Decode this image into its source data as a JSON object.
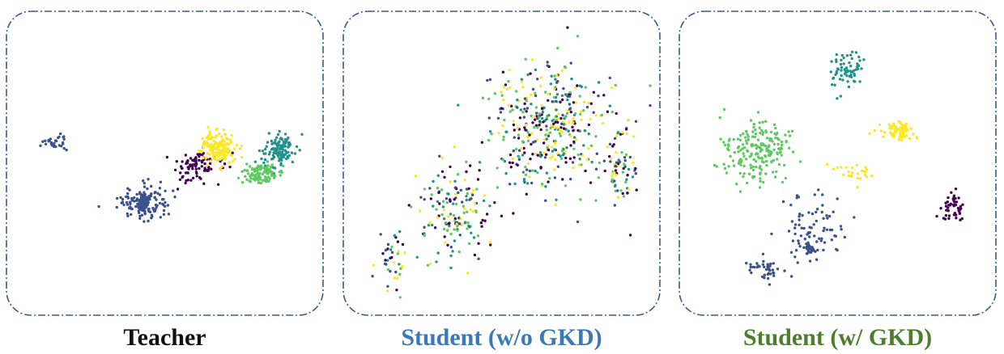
{
  "panels": [
    {
      "title": "Teacher",
      "title_color": "#111111"
    },
    {
      "title": "Student (w/o GKD)",
      "title_color": "#3a78b8"
    },
    {
      "title": "Student (w/ GKD)",
      "title_color": "#4e7d2e"
    }
  ],
  "colors": {
    "c1": "#3b528b",
    "c2": "#440154",
    "c3": "#fde725",
    "c4": "#21918c",
    "c5": "#5ec962",
    "frame": "#3b5a8a"
  },
  "chart_data": [
    {
      "type": "scatter",
      "title": "Teacher",
      "grid": false,
      "legend": "none",
      "clusters": [
        {
          "class": "c1",
          "center": [
            62,
            165
          ],
          "spread": [
            13,
            10
          ],
          "count": 30
        },
        {
          "class": "c1",
          "center": [
            170,
            240
          ],
          "spread": [
            28,
            18
          ],
          "count": 140
        },
        {
          "class": "c1",
          "center": [
            172,
            236
          ],
          "spread": [
            6,
            6
          ],
          "count": 90
        },
        {
          "class": "c2",
          "center": [
            240,
            195
          ],
          "spread": [
            25,
            18
          ],
          "count": 90
        },
        {
          "class": "c3",
          "center": [
            263,
            170
          ],
          "spread": [
            20,
            20
          ],
          "count": 150
        },
        {
          "class": "c4",
          "center": [
            338,
            175
          ],
          "spread": [
            18,
            18
          ],
          "count": 120
        },
        {
          "class": "c5",
          "center": [
            318,
            203
          ],
          "spread": [
            25,
            13
          ],
          "count": 100
        }
      ]
    },
    {
      "type": "scatter",
      "title": "Student (w/o GKD)",
      "grid": false,
      "legend": "none",
      "clusters": [
        {
          "class": "mixed",
          "center": [
            256,
            145
          ],
          "spread": [
            70,
            70
          ],
          "count": 420
        },
        {
          "class": "mixed",
          "center": [
            143,
            250
          ],
          "spread": [
            40,
            50
          ],
          "count": 160
        },
        {
          "class": "mixed",
          "center": [
            345,
            190
          ],
          "spread": [
            18,
            55
          ],
          "count": 70
        },
        {
          "class": "mixed",
          "center": [
            65,
            305
          ],
          "spread": [
            15,
            40
          ],
          "count": 40
        }
      ]
    },
    {
      "type": "scatter",
      "title": "Student (w/ GKD)",
      "grid": false,
      "legend": "none",
      "clusters": [
        {
          "class": "c5",
          "center": [
            100,
            175
          ],
          "spread": [
            38,
            35
          ],
          "count": 200
        },
        {
          "class": "c4",
          "center": [
            210,
            75
          ],
          "spread": [
            20,
            25
          ],
          "count": 70
        },
        {
          "class": "c3",
          "center": [
            275,
            150
          ],
          "spread": [
            20,
            10
          ],
          "count": 70
        },
        {
          "class": "c3",
          "center": [
            220,
            200
          ],
          "spread": [
            20,
            10
          ],
          "count": 25
        },
        {
          "class": "c2",
          "center": [
            340,
            245
          ],
          "spread": [
            12,
            20
          ],
          "count": 45
        },
        {
          "class": "c1",
          "center": [
            165,
            270
          ],
          "spread": [
            35,
            45
          ],
          "count": 80
        },
        {
          "class": "c1",
          "center": [
            110,
            320
          ],
          "spread": [
            20,
            15
          ],
          "count": 40
        },
        {
          "class": "c1",
          "center": [
            163,
            296
          ],
          "spread": [
            4,
            6
          ],
          "count": 30
        }
      ]
    }
  ]
}
